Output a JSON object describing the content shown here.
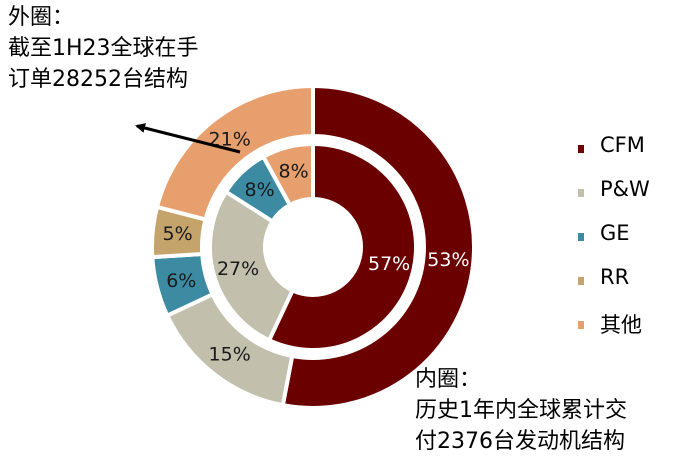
{
  "annotations": {
    "outer_ring": [
      "外圈：",
      "截至1H23全球在手",
      "订单28252台结构"
    ],
    "inner_ring": [
      "内圈：",
      "历史1年内全球累计交",
      "付2376台发动机结构"
    ]
  },
  "chart_data": {
    "type": "donut",
    "categories": [
      "CFM",
      "P&W",
      "GE",
      "RR",
      "其他"
    ],
    "colors": [
      "#6b0000",
      "#c2c0ad",
      "#3c8ba3",
      "#c4a46b",
      "#e7a06d"
    ],
    "series": [
      {
        "ring": "inner",
        "values": [
          57,
          27,
          8,
          0,
          8
        ],
        "labels": [
          "57%",
          "27%",
          "8%",
          "",
          "8%"
        ]
      },
      {
        "ring": "outer",
        "values": [
          53,
          15,
          6,
          5,
          21
        ],
        "labels": [
          "53%",
          "15%",
          "6%",
          "5%",
          "21%"
        ]
      }
    ],
    "legend": {
      "position": "right"
    },
    "legend_icon": "square-marker"
  }
}
